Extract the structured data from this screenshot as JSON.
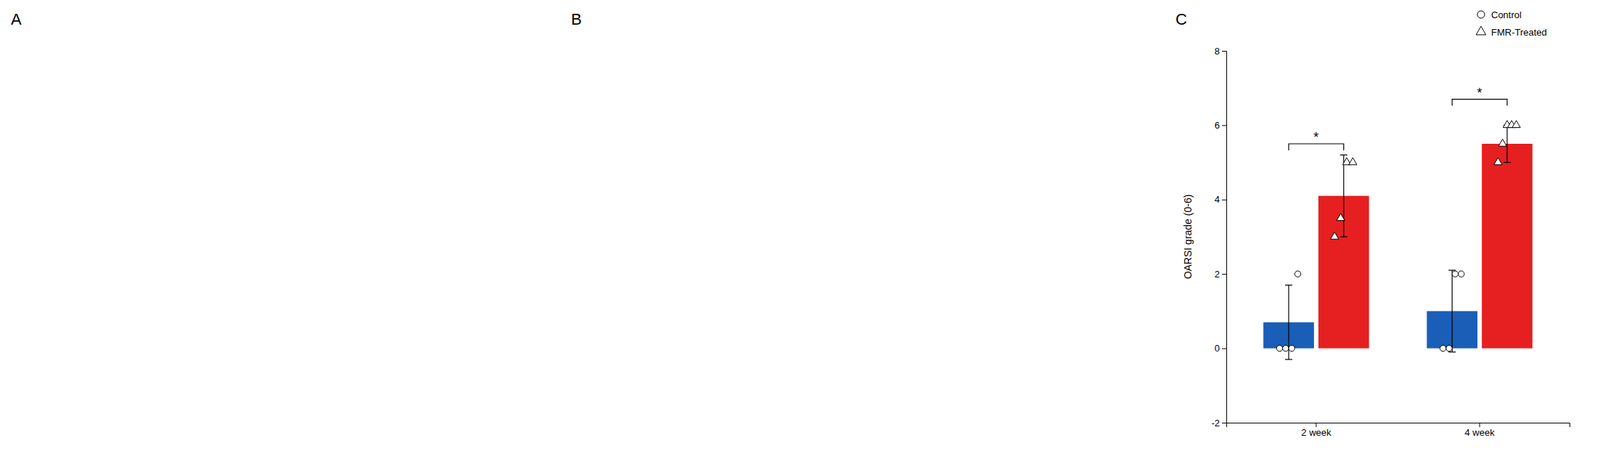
{
  "chart_data": [
    {
      "type": "blank",
      "title": "A"
    },
    {
      "type": "blank",
      "title": "B"
    },
    {
      "type": "bar",
      "title": "C",
      "ylabel": "OARSI grade (0-6)",
      "categories": [
        "2 week",
        "4 week"
      ],
      "series": [
        {
          "name": "Control",
          "color": "#1a5eb8",
          "marker": "circle",
          "values": [
            0.7,
            1.0
          ],
          "errors": [
            1.0,
            1.1
          ],
          "points": [
            [
              0.0,
              0.0,
              0.0,
              2.0
            ],
            [
              0.0,
              0.0,
              2.0,
              2.0
            ]
          ]
        },
        {
          "name": "FMR-Treated",
          "color": "#e62020",
          "marker": "triangle",
          "values": [
            4.1,
            5.5
          ],
          "errors": [
            1.1,
            0.5
          ],
          "points": [
            [
              3.0,
              3.5,
              5.0,
              5.0
            ],
            [
              5.0,
              5.5,
              6.0,
              6.0,
              6.0
            ]
          ]
        }
      ],
      "annotations": [
        {
          "text": "*",
          "category": "2 week",
          "y": 5.5
        },
        {
          "text": "*",
          "category": "4 week",
          "y": 6.7
        }
      ],
      "ylim": [
        -2,
        8
      ],
      "yticks": [
        -2,
        0,
        2,
        4,
        6,
        8
      ],
      "grid": false,
      "legend": "upper right"
    }
  ]
}
